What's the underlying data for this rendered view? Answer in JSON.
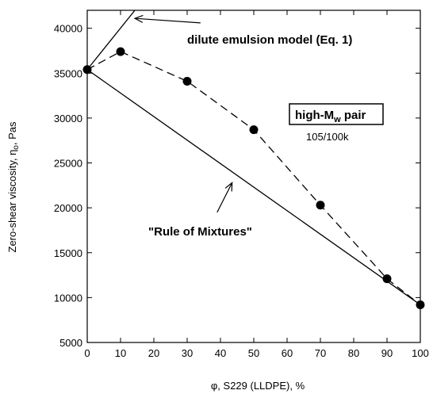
{
  "chart_data": {
    "type": "line",
    "xlabel_symbol": "φ",
    "xlabel_rest": ", S229 (LLDPE), %",
    "ylabel_pre": "Zero-shear viscosity, η",
    "ylabel_sub": "o",
    "ylabel_post": ", Pas",
    "xlim": [
      0,
      100
    ],
    "ylim": [
      5000,
      42000
    ],
    "xticks": [
      0,
      10,
      20,
      30,
      40,
      50,
      60,
      70,
      80,
      90,
      100
    ],
    "yticks": [
      5000,
      10000,
      15000,
      20000,
      25000,
      30000,
      35000,
      40000
    ],
    "grid": false,
    "series": [
      {
        "style": "dashed-with-circles",
        "color": "#000000",
        "x": [
          0,
          10,
          30,
          50,
          70,
          90,
          100
        ],
        "y": [
          35400,
          37400,
          34100,
          28700,
          20300,
          12100,
          9200
        ]
      },
      {
        "style": "solid",
        "color": "#000000",
        "x": [
          0,
          100
        ],
        "y": [
          35400,
          9200
        ]
      },
      {
        "style": "solid",
        "color": "#000000",
        "x": [
          0,
          14.3
        ],
        "y": [
          35400,
          42000
        ]
      }
    ],
    "annotations": {
      "dilute_label": "dilute emulsion model (Eq. 1)",
      "rule_label": "\"Rule of Mixtures\"",
      "legend_box_main": "high-M",
      "legend_box_sub": "w",
      "legend_box_tail": " pair",
      "legend_box_detail": "105/100k"
    },
    "arrows": [
      {
        "from": [
          34,
          40600
        ],
        "to": [
          14.3,
          41100
        ]
      },
      {
        "from": [
          39,
          19500
        ],
        "to": [
          43.5,
          22800
        ]
      }
    ]
  }
}
